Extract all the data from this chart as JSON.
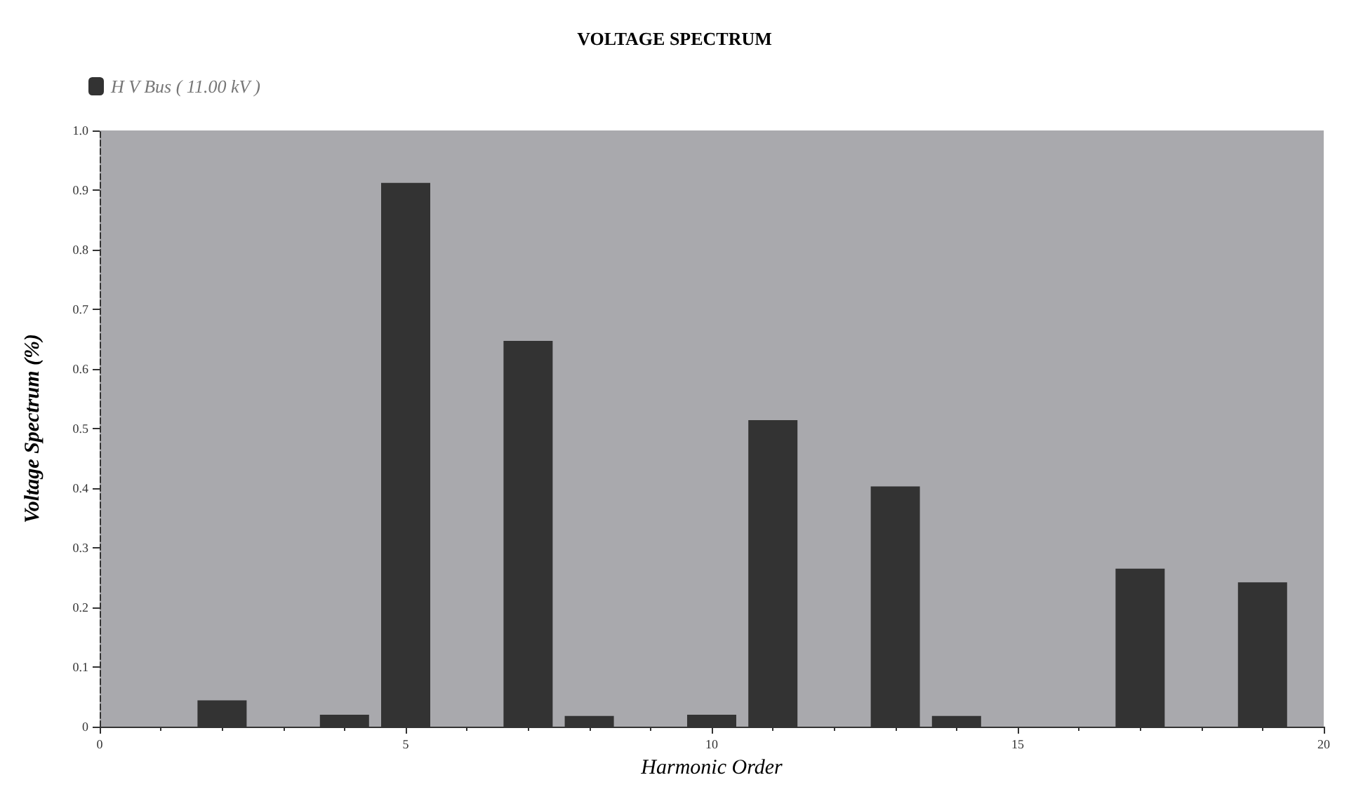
{
  "chart_data": {
    "type": "bar",
    "title": "VOLTAGE SPECTRUM",
    "xlabel": "Harmonic Order",
    "ylabel": "Voltage Spectrum (%)",
    "x": [
      2,
      4,
      5,
      7,
      8,
      10,
      11,
      13,
      14,
      17,
      19
    ],
    "series": [
      {
        "name": "H V Bus ( 11.00 kV )",
        "color": "#333333",
        "values": [
          0.044,
          0.02,
          0.912,
          0.647,
          0.018,
          0.02,
          0.514,
          0.403,
          0.018,
          0.265,
          0.242
        ]
      }
    ],
    "xlim": [
      0,
      20
    ],
    "xticks": [
      0,
      5,
      10,
      15,
      20
    ],
    "ylim": [
      0,
      1
    ],
    "yticks": [
      0,
      0.1,
      0.2,
      0.3,
      0.4,
      0.5,
      0.6,
      0.7,
      0.8,
      0.9,
      {
        "value": 1,
        "label": "1.0"
      }
    ],
    "grid": false,
    "legend": "top left"
  }
}
